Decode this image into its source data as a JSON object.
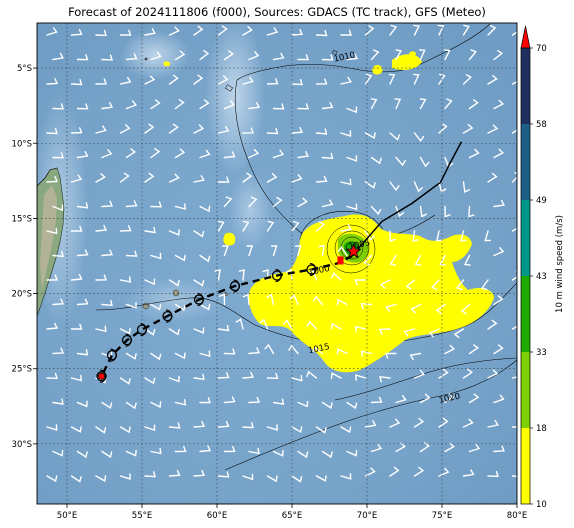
{
  "title": "Forecast of 2024111806 (f000), Sources: GDACS (TC track), GFS (Meteo)",
  "map": {
    "lon_range": [
      48,
      80
    ],
    "lat_range": [
      -34,
      -2
    ],
    "lon_ticks": [
      {
        "value": 50,
        "label": "50°E"
      },
      {
        "value": 55,
        "label": "55°E"
      },
      {
        "value": 60,
        "label": "60°E"
      },
      {
        "value": 65,
        "label": "65°E"
      },
      {
        "value": 70,
        "label": "70°E"
      },
      {
        "value": 75,
        "label": "75°E"
      },
      {
        "value": 80,
        "label": "80°E"
      }
    ],
    "lat_ticks": [
      {
        "value": -5,
        "label": "5°S"
      },
      {
        "value": -10,
        "label": "10°S"
      },
      {
        "value": -15,
        "label": "15°S"
      },
      {
        "value": -20,
        "label": "20°S"
      },
      {
        "value": -25,
        "label": "25°S"
      },
      {
        "value": -30,
        "label": "30°S"
      }
    ],
    "gridlines": true,
    "colors": {
      "ocean": "#7aa6cc",
      "wind_10_18": "#ffff00",
      "wind_18_33": "#7fd000",
      "wind_33_43": "#1faa00",
      "wind_43_49": "#009688",
      "wind_49_58": "#1e5f8a",
      "wind_58_70": "#1f2f5e",
      "track": "#000000",
      "center_marker": "#ff0000"
    },
    "isobar_labels": [
      {
        "label": "1005",
        "lon": 69.5,
        "lat": -16.8
      },
      {
        "label": "1010",
        "lon": 68.5,
        "lat": -4.3
      },
      {
        "label": "1015",
        "lon": 66.8,
        "lat": -23.7
      },
      {
        "label": "1020",
        "lon": 75.5,
        "lat": -27.0
      },
      {
        "label": "1000",
        "lon": 66.8,
        "lat": -18.5
      }
    ]
  },
  "track": {
    "past": [
      [
        76.3,
        -9.9
      ],
      [
        75.6,
        -11.2
      ],
      [
        74.9,
        -12.6
      ],
      [
        73.0,
        -14.0
      ],
      [
        71.0,
        -15.2
      ],
      [
        69.6,
        -16.8
      ],
      [
        69.0,
        -17.5
      ]
    ],
    "forecast": [
      [
        69.0,
        -17.5
      ],
      [
        68.0,
        -18.0
      ],
      [
        66.3,
        -18.4
      ],
      [
        64.0,
        -18.8
      ],
      [
        61.2,
        -19.5
      ],
      [
        58.8,
        -20.4
      ],
      [
        56.7,
        -21.5
      ],
      [
        55.0,
        -22.4
      ],
      [
        54.0,
        -23.1
      ],
      [
        53.0,
        -24.1
      ],
      [
        52.3,
        -25.5
      ]
    ],
    "markers": [
      [
        66.3,
        -18.4
      ],
      [
        64.0,
        -18.8
      ],
      [
        61.2,
        -19.5
      ],
      [
        58.8,
        -20.4
      ],
      [
        56.7,
        -21.5
      ],
      [
        55.0,
        -22.4
      ],
      [
        54.0,
        -23.1
      ],
      [
        53.0,
        -24.1
      ],
      [
        52.3,
        -25.5
      ]
    ],
    "center": [
      69.1,
      -17.2
    ]
  },
  "colorbar": {
    "label": "10 m wind speed (m/s)",
    "levels": [
      10,
      18,
      33,
      43,
      49,
      58,
      70
    ],
    "colors": [
      "#ffff00",
      "#7fd000",
      "#1faa00",
      "#009688",
      "#1e5f8a",
      "#1f2f5e"
    ],
    "extend_color": "#ff0000",
    "tick_labels": [
      "10",
      "18",
      "33",
      "43",
      "49",
      "58",
      "70"
    ]
  }
}
